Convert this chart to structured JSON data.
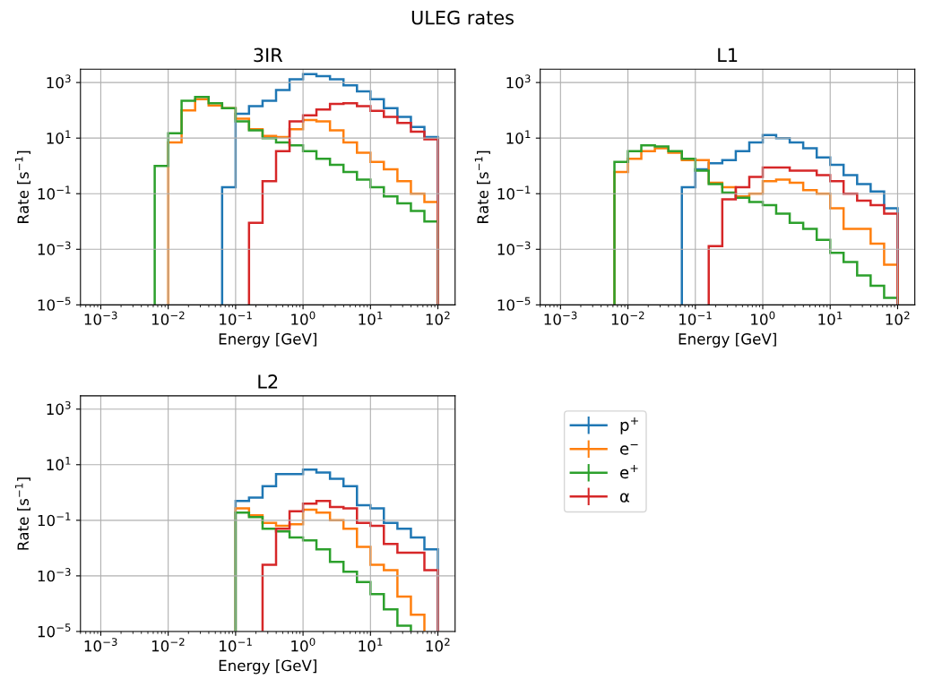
{
  "chart_data": [
    {
      "type": "histogram",
      "title": "3IR",
      "xlabel": "Energy [GeV]",
      "ylabel": "Rate [s$^{−1}$]",
      "annotations": [
        "ULEG rates"
      ],
      "bins": [
        0.00631,
        0.01,
        0.0158,
        0.0251,
        0.0398,
        0.0631,
        0.1,
        0.158,
        0.251,
        0.398,
        0.631,
        1,
        1.58,
        2.51,
        3.98,
        6.31,
        10,
        15.8,
        25.1,
        39.8,
        63.1,
        100
      ],
      "series": [
        {
          "color": "#1f77b4",
          "bins": [
            0.0631,
            0.1,
            0.158,
            0.251,
            0.398,
            0.631,
            1,
            1.58,
            2.51,
            3.98,
            6.31,
            10,
            15.8,
            25.1,
            39.8,
            63.1,
            100
          ],
          "values": [
            0.17,
            75,
            140,
            220,
            540,
            1300,
            2000,
            1700,
            1300,
            800,
            480,
            250,
            120,
            58,
            25,
            11
          ]
        },
        {
          "color": "#ff7f0e",
          "bins": [
            0.01,
            0.0158,
            0.0251,
            0.0398,
            0.0631,
            0.1,
            0.158,
            0.251,
            0.398,
            0.631,
            1,
            1.58,
            2.51,
            3.98,
            6.31,
            10,
            15.8,
            25.1,
            39.8,
            63.1,
            100
          ],
          "values": [
            7,
            100,
            250,
            150,
            120,
            50,
            21,
            12,
            11,
            21,
            45,
            40,
            19,
            7,
            3,
            1.4,
            0.75,
            0.28,
            0.1,
            0.05
          ]
        },
        {
          "color": "#2ca02c",
          "values": [
            1,
            15,
            220,
            300,
            180,
            120,
            40,
            19,
            10,
            7,
            5.5,
            3.4,
            1.8,
            1.1,
            0.6,
            0.32,
            0.17,
            0.08,
            0.045,
            0.024,
            0.01
          ]
        },
        {
          "color": "#d62728",
          "bins": [
            0.158,
            0.251,
            0.398,
            0.631,
            1,
            1.58,
            2.51,
            3.98,
            6.31,
            10,
            15.8,
            25.1,
            39.8,
            63.1,
            100
          ],
          "values": [
            0.009,
            0.28,
            3.4,
            40,
            66,
            107,
            170,
            180,
            140,
            95,
            58,
            35,
            17,
            9
          ]
        }
      ],
      "log": "xy",
      "grid": true,
      "xlim": [
        0.0005,
        180
      ],
      "ylim": [
        1e-05,
        3000
      ],
      "xticks": [
        {
          "value": 0.001,
          "label": "10$^{−3}$"
        },
        {
          "value": 0.01,
          "label": "10$^{−2}$"
        },
        {
          "value": 0.1,
          "label": "10$^{−1}$"
        },
        {
          "value": 1,
          "label": "10$^{0}$"
        },
        {
          "value": 10,
          "label": "10$^{1}$"
        },
        {
          "value": 100,
          "label": "10$^{2}$"
        }
      ],
      "yticks": [
        {
          "value": 1e-05,
          "label": "10$^{−5}$"
        },
        {
          "value": 0.001,
          "label": "10$^{−3}$"
        },
        {
          "value": 0.1,
          "label": "10$^{−1}$"
        },
        {
          "value": 10,
          "label": "10$^{1}$"
        },
        {
          "value": 1000,
          "label": "10$^{3}$"
        }
      ]
    },
    {
      "type": "histogram",
      "title": "L1",
      "xlabel": "Energy [GeV]",
      "ylabel": "Rate [s$^{−1}$]",
      "bins": [
        0.00631,
        0.01,
        0.0158,
        0.0251,
        0.0398,
        0.0631,
        0.1,
        0.158,
        0.251,
        0.398,
        0.631,
        1,
        1.58,
        2.51,
        3.98,
        6.31,
        10,
        15.8,
        25.1,
        39.8,
        63.1,
        100
      ],
      "series": [
        {
          "color": "#1f77b4",
          "bins": [
            0.0631,
            0.1,
            0.158,
            0.251,
            0.398,
            0.631,
            1,
            1.58,
            2.51,
            3.98,
            6.31,
            10,
            15.8,
            25.1,
            39.8,
            63.1,
            100
          ],
          "values": [
            0.17,
            0.75,
            1.25,
            1.6,
            3.4,
            7,
            13,
            10,
            7,
            4.3,
            2,
            1.1,
            0.47,
            0.22,
            0.12,
            0.03
          ]
        },
        {
          "color": "#ff7f0e",
          "values": [
            0.6,
            1.8,
            3.4,
            4.3,
            3,
            1.6,
            1.6,
            0.25,
            0.17,
            0.08,
            0.1,
            0.28,
            0.32,
            0.25,
            0.135,
            0.1,
            0.03,
            0.0054,
            0.0054,
            0.0016,
            0.00028
          ]
        },
        {
          "color": "#2ca02c",
          "values": [
            1.4,
            3.4,
            5.5,
            5,
            3.4,
            1.8,
            0.68,
            0.22,
            0.11,
            0.072,
            0.05,
            0.039,
            0.019,
            0.009,
            0.0054,
            0.0022,
            0.00074,
            0.00035,
            0.000115,
            4.9e-05,
            1.8e-05
          ]
        },
        {
          "color": "#d62728",
          "bins": [
            0.158,
            0.251,
            0.398,
            0.631,
            1,
            1.58,
            2.51,
            3.98,
            6.31,
            10,
            15.8,
            25.1,
            39.8,
            63.1,
            100
          ],
          "values": [
            0.0013,
            0.063,
            0.17,
            0.4,
            0.87,
            0.87,
            0.68,
            0.68,
            0.47,
            0.28,
            0.1,
            0.056,
            0.039,
            0.019
          ]
        }
      ],
      "log": "xy",
      "grid": true,
      "xlim": [
        0.0005,
        180
      ],
      "ylim": [
        1e-05,
        3000
      ],
      "xticks": [
        {
          "value": 0.001,
          "label": "10$^{−3}$"
        },
        {
          "value": 0.01,
          "label": "10$^{−2}$"
        },
        {
          "value": 0.1,
          "label": "10$^{−1}$"
        },
        {
          "value": 1,
          "label": "10$^{0}$"
        },
        {
          "value": 10,
          "label": "10$^{1}$"
        },
        {
          "value": 100,
          "label": "10$^{2}$"
        }
      ],
      "yticks": [
        {
          "value": 1e-05,
          "label": "10$^{−5}$"
        },
        {
          "value": 0.001,
          "label": "10$^{−3}$"
        },
        {
          "value": 0.1,
          "label": "10$^{−1}$"
        },
        {
          "value": 10,
          "label": "10$^{1}$"
        },
        {
          "value": 1000,
          "label": "10$^{3}$"
        }
      ]
    },
    {
      "type": "histogram",
      "title": "L2",
      "xlabel": "Energy [GeV]",
      "ylabel": "Rate [s$^{−1}$]",
      "legend": "right",
      "bins": [
        0.1,
        0.158,
        0.251,
        0.398,
        0.631,
        1,
        1.58,
        2.51,
        3.98,
        6.31,
        10,
        15.8,
        25.1,
        39.8,
        63.1,
        100
      ],
      "series": [
        {
          "name": "p$^{+}$",
          "color": "#1f77b4",
          "values": [
            0.5,
            0.66,
            1.7,
            4.6,
            4.6,
            6.6,
            5.2,
            3.1,
            1.7,
            0.35,
            0.27,
            0.08,
            0.05,
            0.024,
            0.009
          ]
        },
        {
          "name": "e$^{−}$",
          "color": "#ff7f0e",
          "bins": [
            0.1,
            0.158,
            0.251,
            0.398,
            0.631,
            1,
            1.58,
            2.51,
            3.98,
            6.31,
            10,
            15.8,
            25.1,
            39.8,
            63.1
          ],
          "values": [
            0.27,
            0.15,
            0.08,
            0.063,
            0.072,
            0.24,
            0.19,
            0.1,
            0.05,
            0.011,
            0.0025,
            0.0016,
            0.00018,
            4e-05
          ]
        },
        {
          "name": "e$^{+}$",
          "color": "#2ca02c",
          "bins": [
            0.1,
            0.158,
            0.251,
            0.398,
            0.631,
            1,
            1.58,
            2.51,
            3.98,
            6.31,
            10,
            15.8,
            25.1,
            39.8
          ],
          "values": [
            0.19,
            0.13,
            0.05,
            0.04,
            0.024,
            0.019,
            0.009,
            0.0032,
            0.0014,
            0.0006,
            0.00022,
            6.3e-05,
            1.6e-05
          ]
        },
        {
          "name": "α",
          "color": "#d62728",
          "bins": [
            0.251,
            0.398,
            0.631,
            1,
            1.58,
            2.51,
            3.98,
            6.31,
            10,
            15.8,
            25.1,
            39.8,
            63.1,
            100
          ],
          "values": [
            0.0025,
            0.05,
            0.21,
            0.4,
            0.5,
            0.3,
            0.27,
            0.08,
            0.063,
            0.014,
            0.0068,
            0.0068,
            0.0016
          ]
        }
      ],
      "log": "xy",
      "grid": true,
      "xlim": [
        0.0005,
        180
      ],
      "ylim": [
        1e-05,
        3000
      ],
      "xticks": [
        {
          "value": 0.001,
          "label": "10$^{−3}$"
        },
        {
          "value": 0.01,
          "label": "10$^{−2}$"
        },
        {
          "value": 0.1,
          "label": "10$^{−1}$"
        },
        {
          "value": 1,
          "label": "10$^{0}$"
        },
        {
          "value": 10,
          "label": "10$^{1}$"
        },
        {
          "value": 100,
          "label": "10$^{2}$"
        }
      ],
      "yticks": [
        {
          "value": 1e-05,
          "label": "10$^{−5}$"
        },
        {
          "value": 0.001,
          "label": "10$^{−3}$"
        },
        {
          "value": 0.1,
          "label": "10$^{−1}$"
        },
        {
          "value": 10,
          "label": "10$^{1}$"
        },
        {
          "value": 1000,
          "label": "10$^{3}$"
        }
      ]
    }
  ]
}
